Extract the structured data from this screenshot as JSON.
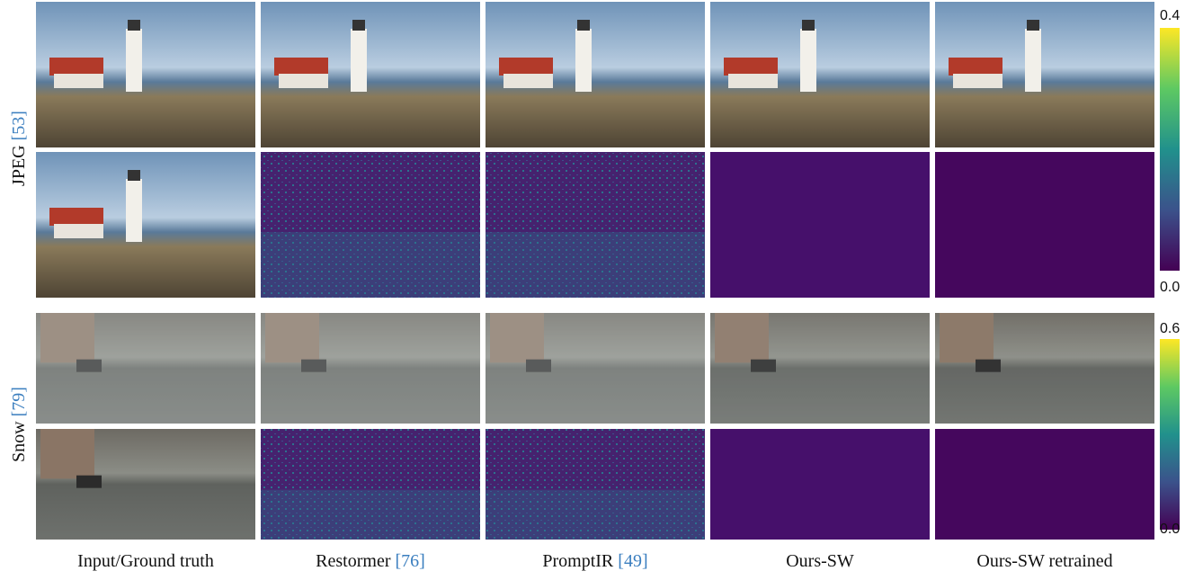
{
  "columns": [
    {
      "label": "Input/Ground truth"
    },
    {
      "label": "Restormer",
      "ref": "[76]"
    },
    {
      "label": "PromptIR",
      "ref": "[49]"
    },
    {
      "label": "Ours-SW"
    },
    {
      "label": "Ours-SW retrained"
    }
  ],
  "rows": [
    {
      "label": "JPEG",
      "ref": "[53]",
      "colorbar": {
        "max": "0.4",
        "min": "0.0"
      }
    },
    {
      "label": "Snow",
      "ref": "[79]",
      "colorbar": {
        "max": "0.6",
        "min": "0.0"
      }
    }
  ]
}
